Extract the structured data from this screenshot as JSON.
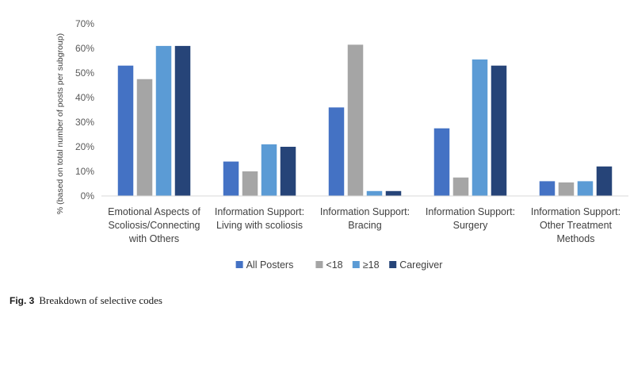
{
  "caption": {
    "label": "Fig. 3",
    "text": "Breakdown of selective codes"
  },
  "chart_data": {
    "type": "bar",
    "title": "",
    "xlabel": "",
    "ylabel": "% (based on total number of posts per subgroup)",
    "ylim": [
      0,
      70
    ],
    "yticks": [
      "0%",
      "10%",
      "20%",
      "30%",
      "40%",
      "50%",
      "60%",
      "70%"
    ],
    "grid": false,
    "legend_position": "bottom",
    "categories": [
      [
        "Emotional Aspects of",
        "Scoliosis/Connecting",
        "with Others"
      ],
      [
        "Information Support:",
        "Living with scoliosis"
      ],
      [
        "Information Support:",
        "Bracing"
      ],
      [
        "Information Support:",
        "Surgery"
      ],
      [
        "Information Support:",
        "Other Treatment",
        "Methods"
      ]
    ],
    "series": [
      {
        "name": "All Posters",
        "color": "#4472c4",
        "values": [
          53,
          14,
          36,
          27.5,
          6
        ]
      },
      {
        "name": "<18",
        "color": "#a5a5a5",
        "values": [
          47.5,
          10,
          61.5,
          7.5,
          5.5
        ]
      },
      {
        "name": "≥18",
        "color": "#5b9bd5",
        "values": [
          61,
          21,
          2,
          55.5,
          6
        ]
      },
      {
        "name": "Caregiver",
        "color": "#264478",
        "values": [
          61,
          20,
          2,
          53,
          12
        ]
      }
    ]
  }
}
